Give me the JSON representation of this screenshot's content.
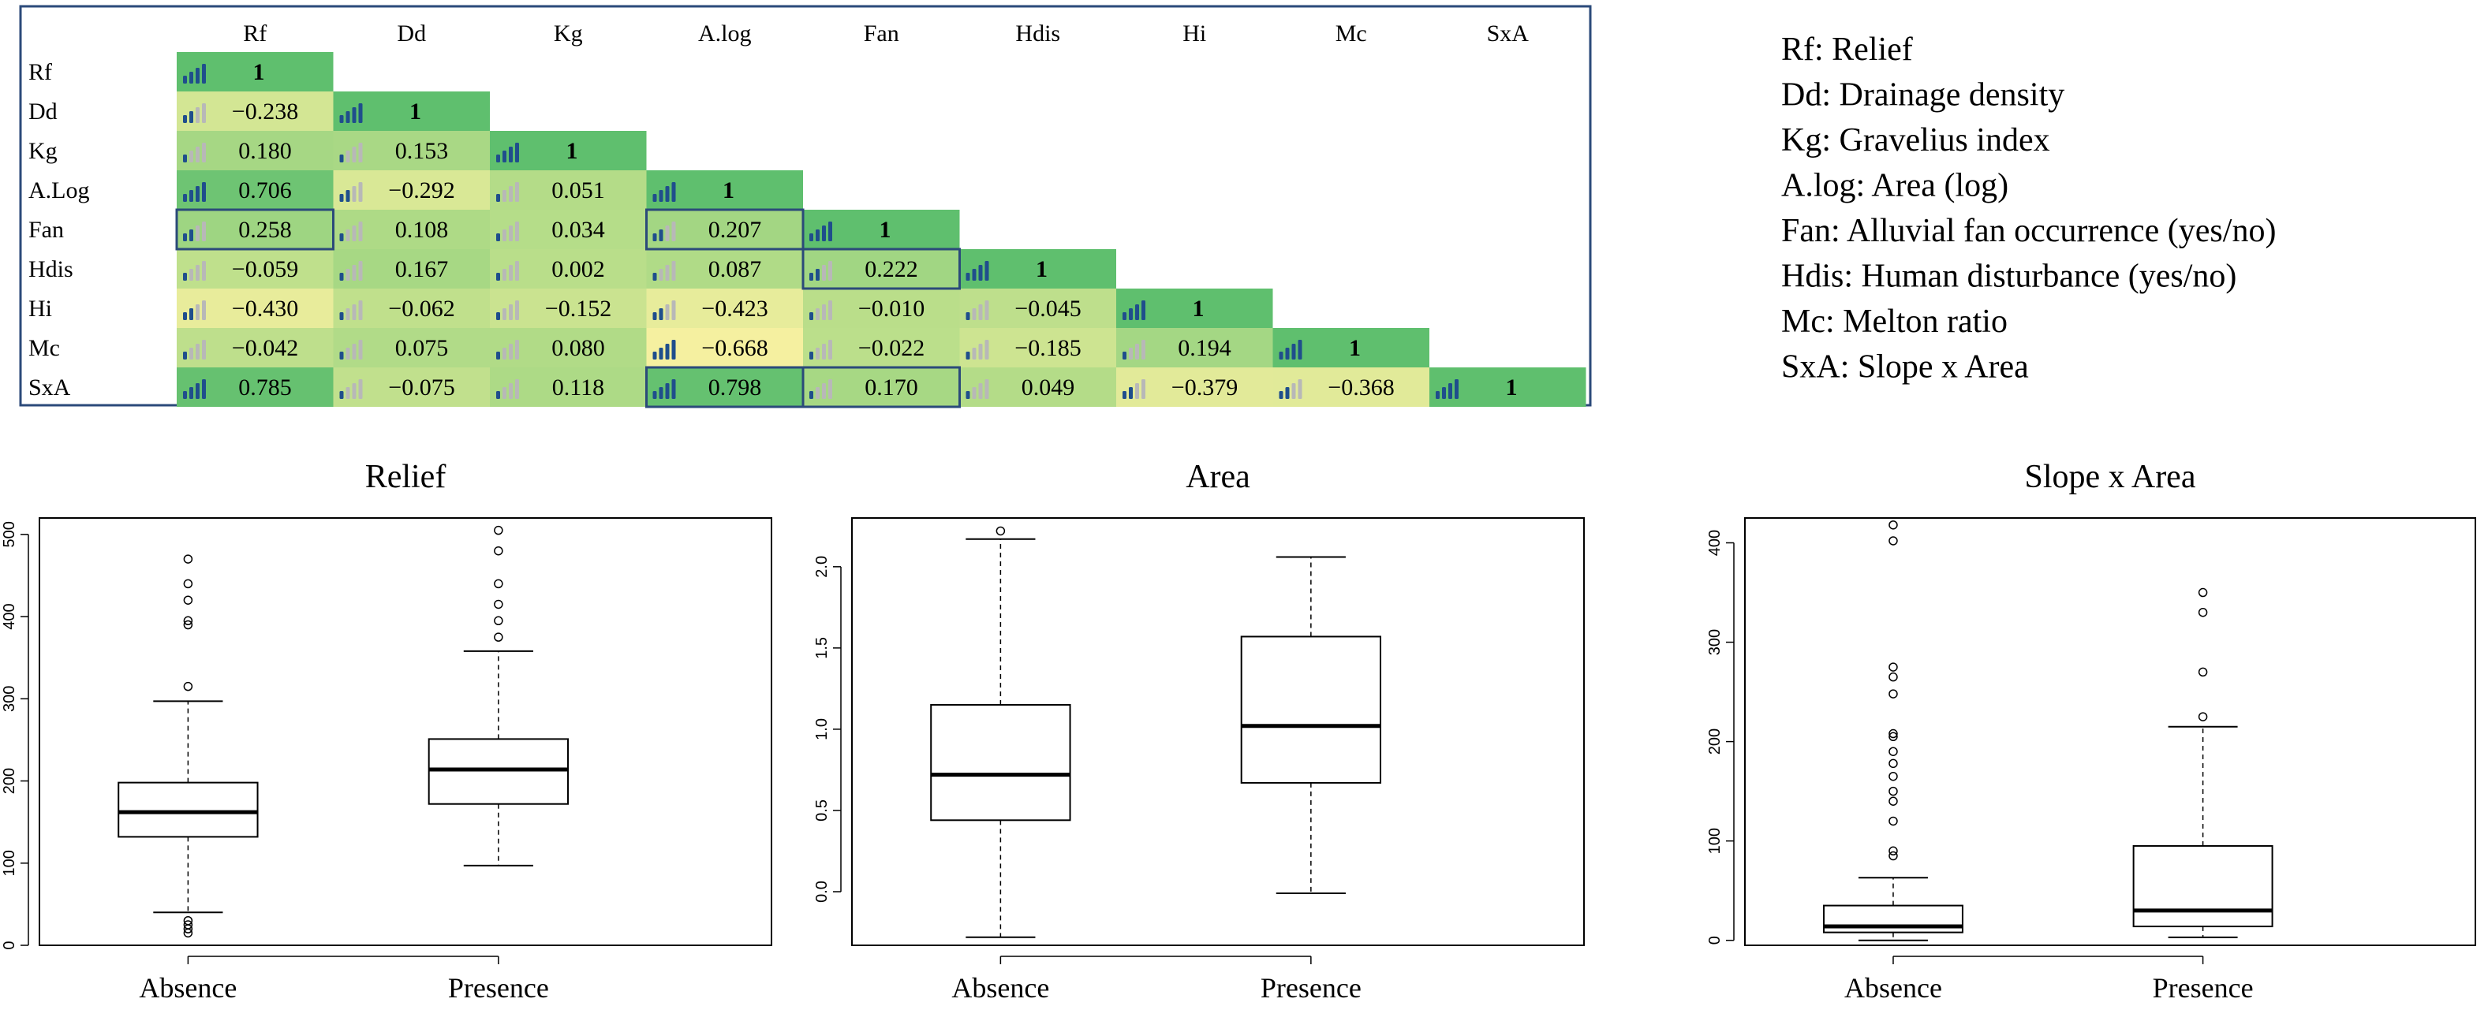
{
  "correlation_matrix": {
    "column_labels": [
      "Rf",
      "Dd",
      "Kg",
      "A.log",
      "Fan",
      "Hdis",
      "Hi",
      "Mc",
      "SxA"
    ],
    "row_labels": [
      "Rf",
      "Dd",
      "Kg",
      "A.Log",
      "Fan",
      "Hdis",
      "Hi",
      "Mc",
      "SxA"
    ],
    "rows": [
      [
        "1"
      ],
      [
        "−0.238",
        "1"
      ],
      [
        "0.180",
        "0.153",
        "1"
      ],
      [
        "0.706",
        "−0.292",
        "0.051",
        "1"
      ],
      [
        "0.258",
        "0.108",
        "0.034",
        "0.207",
        "1"
      ],
      [
        "−0.059",
        "0.167",
        "0.002",
        "0.087",
        "0.222",
        "1"
      ],
      [
        "−0.430",
        "−0.062",
        "−0.152",
        "−0.423",
        "−0.010",
        "−0.045",
        "1"
      ],
      [
        "−0.042",
        "0.075",
        "0.080",
        "−0.668",
        "−0.022",
        "−0.185",
        "0.194",
        "1"
      ],
      [
        "0.785",
        "−0.075",
        "0.118",
        "0.798",
        "0.170",
        "0.049",
        "−0.379",
        "−0.368",
        "1"
      ]
    ],
    "highlighted_cells": [
      [
        4,
        0
      ],
      [
        4,
        3
      ],
      [
        5,
        4
      ],
      [
        8,
        3
      ],
      [
        8,
        4
      ]
    ]
  },
  "legend": [
    "Rf: Relief",
    "Dd: Drainage density",
    "Kg: Gravelius index",
    "A.log: Area (log)",
    "Fan: Alluvial fan occurrence (yes/no)",
    "Hdis: Human disturbance (yes/no)",
    "Mc: Melton ratio",
    "SxA: Slope x Area"
  ],
  "colors": {
    "high": "#5fbf6e",
    "mid": "#b9de8a",
    "low": "#f5f0a0",
    "frame": "#2b4a7a",
    "bar_on": "#1f4e8c",
    "bar_off": "#b8b8b8"
  },
  "chart_data": [
    {
      "type": "boxplot",
      "title": "Relief",
      "categories": [
        "Absence",
        "Presence"
      ],
      "ylim": [
        0,
        520
      ],
      "yticks": [
        0,
        100,
        200,
        300,
        400,
        500
      ],
      "boxes": [
        {
          "name": "Absence",
          "whisker_low": 40,
          "q1": 132,
          "median": 162,
          "q3": 198,
          "whisker_high": 297,
          "outliers": [
            15,
            20,
            25,
            30,
            315,
            390,
            395,
            420,
            440,
            470
          ]
        },
        {
          "name": "Presence",
          "whisker_low": 97,
          "q1": 172,
          "median": 214,
          "q3": 251,
          "whisker_high": 358,
          "outliers": [
            375,
            395,
            415,
            440,
            480,
            505
          ]
        }
      ]
    },
    {
      "type": "boxplot",
      "title": "Area",
      "categories": [
        "Absence",
        "Presence"
      ],
      "ylim": [
        -0.33,
        2.3
      ],
      "yticks": [
        "0.0",
        "0.5",
        "1.0",
        "1.5",
        "2.0"
      ],
      "ytick_values": [
        0,
        0.5,
        1,
        1.5,
        2
      ],
      "boxes": [
        {
          "name": "Absence",
          "whisker_low": -0.28,
          "q1": 0.44,
          "median": 0.72,
          "q3": 1.15,
          "whisker_high": 2.17,
          "outliers": [
            2.22
          ]
        },
        {
          "name": "Presence",
          "whisker_low": -0.01,
          "q1": 0.67,
          "median": 1.02,
          "q3": 1.57,
          "whisker_high": 2.06,
          "outliers": []
        }
      ]
    },
    {
      "type": "boxplot",
      "title": "Slope x Area",
      "categories": [
        "Absence",
        "Presence"
      ],
      "ylim": [
        -5,
        425
      ],
      "yticks": [
        0,
        100,
        200,
        300,
        400
      ],
      "boxes": [
        {
          "name": "Absence",
          "whisker_low": 0,
          "q1": 8,
          "median": 14,
          "q3": 35,
          "whisker_high": 63,
          "outliers": [
            85,
            90,
            120,
            140,
            150,
            165,
            178,
            190,
            205,
            208,
            248,
            265,
            275,
            402,
            418
          ]
        },
        {
          "name": "Presence",
          "whisker_low": 3,
          "q1": 14,
          "median": 30,
          "q3": 95,
          "whisker_high": 215,
          "outliers": [
            225,
            270,
            330,
            350
          ]
        }
      ]
    }
  ]
}
